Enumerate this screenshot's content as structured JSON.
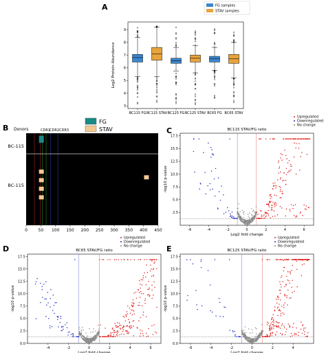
{
  "chart_data": [
    {
      "panel": "A",
      "type": "box",
      "title": "",
      "ylabel": "Log2 Protein Abundance",
      "ylim": [
        2.8,
        9.6
      ],
      "yticks": [
        3,
        4,
        5,
        6,
        7,
        8,
        9
      ],
      "categories": [
        "BC115 FG",
        "BC115 STAV",
        "BC125 FG",
        "BC125 STAV",
        "BC65 FG",
        "BC65 STAV"
      ],
      "legend": [
        {
          "label": "FG samples",
          "color": "#3b87cf"
        },
        {
          "label": "STAV samples",
          "color": "#e8a43c"
        }
      ],
      "boxes": [
        {
          "q1": 6.45,
          "median": 6.8,
          "q3": 7.05,
          "low": 5.3,
          "high": 8.4,
          "group": 0
        },
        {
          "q1": 6.6,
          "median": 7.1,
          "q3": 7.6,
          "low": 5.3,
          "high": 9.2,
          "group": 1
        },
        {
          "q1": 6.35,
          "median": 6.55,
          "q3": 6.75,
          "low": 5.75,
          "high": 7.6,
          "group": 0
        },
        {
          "q1": 6.45,
          "median": 6.75,
          "q3": 7.0,
          "low": 5.6,
          "high": 7.75,
          "group": 1
        },
        {
          "q1": 6.45,
          "median": 6.7,
          "q3": 6.9,
          "low": 5.8,
          "high": 7.6,
          "group": 0
        },
        {
          "q1": 6.35,
          "median": 6.7,
          "q3": 7.05,
          "low": 5.2,
          "high": 8.0,
          "group": 1
        }
      ]
    },
    {
      "panel": "B",
      "type": "heatmap",
      "title": "Donors",
      "xlim": [
        0,
        450
      ],
      "xticks": [
        0,
        50,
        100,
        150,
        200,
        250,
        300,
        350,
        400,
        450
      ],
      "row_labels": [
        "BC-115",
        "BC-115"
      ],
      "regions": [
        {
          "label": "CDR1",
          "x": 28,
          "color": "#e03030"
        },
        {
          "label": "CDR2",
          "x": 55,
          "color": "#30c030"
        },
        {
          "label": "CDR3",
          "x": 108,
          "color": "#3050e0"
        }
      ],
      "region_extra_lines": [
        {
          "x": 48,
          "color": "#e03030"
        },
        {
          "x": 68,
          "color": "#30c030"
        },
        {
          "x": 84,
          "color": "#3050e0"
        }
      ],
      "legend": [
        {
          "label": "FG",
          "color": "#1a8a84"
        },
        {
          "label": "STAV",
          "color": "#f4c892"
        }
      ],
      "cells": [
        {
          "x": 52,
          "row": 0,
          "pos": 0.12,
          "group": 0
        },
        {
          "x": 52,
          "row": 0,
          "pos": 0.26,
          "group": 0
        },
        {
          "x": 52,
          "row": 1,
          "pos": 0.22,
          "group": 1
        },
        {
          "x": 52,
          "row": 1,
          "pos": 0.34,
          "group": 1
        },
        {
          "x": 52,
          "row": 1,
          "pos": 0.46,
          "group": 1
        },
        {
          "x": 52,
          "row": 1,
          "pos": 0.58,
          "group": 1
        },
        {
          "x": 410,
          "row": 1,
          "pos": 0.3,
          "group": 1
        }
      ]
    },
    {
      "panel": "C",
      "type": "scatter",
      "title": "BC115 STAV/FG ratio",
      "xlabel": "Log2 fold change",
      "ylabel": "-log10 p-value",
      "xlim": [
        -7,
        7
      ],
      "ylim": [
        0,
        18
      ],
      "xticks": [
        -6,
        -4,
        -2,
        0,
        2,
        4,
        6
      ],
      "yticks": [
        2.5,
        5.0,
        7.5,
        10.0,
        12.5,
        15.0,
        17.5
      ],
      "vlines": [
        -1,
        1
      ],
      "hline": 1.3,
      "seed": 11,
      "shape": {
        "n_up": 230,
        "n_down": 55,
        "n_nc": 260,
        "up_k": 2.6,
        "up_c": 0.35,
        "down_k": 3.4,
        "down_c": 0.4
      },
      "legend": [
        "Upregulated",
        "Downregulated",
        "No change"
      ]
    },
    {
      "panel": "D",
      "type": "scatter",
      "title": "BC65 STAV/FG ratio",
      "xlabel": "Log2 fold change",
      "ylabel": "-log10 p-value",
      "xlim": [
        -6,
        7
      ],
      "ylim": [
        0,
        18
      ],
      "xticks": [
        -4,
        -2,
        0,
        2,
        4,
        6
      ],
      "yticks": [
        0.0,
        2.5,
        5.0,
        7.5,
        10.0,
        12.5,
        15.0,
        17.5
      ],
      "vlines": [
        -1,
        1
      ],
      "hline": 1.3,
      "seed": 23,
      "shape": {
        "n_up": 240,
        "n_down": 65,
        "n_nc": 280,
        "up_k": 1.1,
        "up_c": 0.55,
        "down_k": 2.4,
        "down_c": 0.45
      },
      "legend": [
        "Upregulated",
        "Downregulated",
        "No change"
      ]
    },
    {
      "panel": "E",
      "type": "scatter",
      "title": "BC125 STAV/FG ratio",
      "xlabel": "Log2 fold change",
      "ylabel": "-log10 p-value",
      "xlim": [
        -7,
        6
      ],
      "ylim": [
        0,
        18
      ],
      "xticks": [
        -6,
        -4,
        -2,
        0,
        2,
        4
      ],
      "yticks": [
        0.0,
        2.5,
        5.0,
        7.5,
        10.0,
        12.5,
        15.0,
        17.5
      ],
      "vlines": [
        -1,
        1
      ],
      "hline": 1.3,
      "seed": 37,
      "shape": {
        "n_up": 300,
        "n_down": 40,
        "n_nc": 280,
        "up_k": 4.2,
        "up_c": 0.5,
        "down_k": 3.0,
        "down_c": 0.5
      },
      "legend": [
        "Upregulated",
        "Downregulated",
        "No change"
      ]
    }
  ]
}
